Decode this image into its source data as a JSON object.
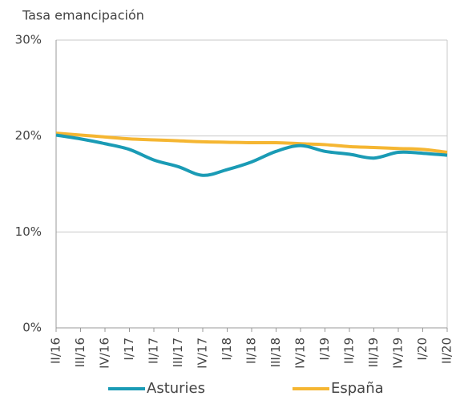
{
  "chart_data": {
    "type": "line",
    "title": "Tasa emancipación",
    "categories": [
      "II/16",
      "III/16",
      "IV/16",
      "I/17",
      "II/17",
      "III/17",
      "IV/17",
      "I/18",
      "II/18",
      "III/18",
      "IV/18",
      "I/19",
      "II/19",
      "III/19",
      "IV/19",
      "I/20",
      "II/20"
    ],
    "series": [
      {
        "name": "Asturies",
        "color": "#1a9bb5",
        "values": [
          20.1,
          19.7,
          19.2,
          18.6,
          17.5,
          16.8,
          15.9,
          16.5,
          17.3,
          18.4,
          19.0,
          18.4,
          18.1,
          17.7,
          18.3,
          18.2,
          18.0
        ]
      },
      {
        "name": "España",
        "color": "#f5b632",
        "values": [
          20.3,
          20.1,
          19.9,
          19.7,
          19.6,
          19.5,
          19.4,
          19.35,
          19.3,
          19.3,
          19.2,
          19.1,
          18.9,
          18.8,
          18.7,
          18.6,
          18.3
        ]
      }
    ],
    "ylim": [
      0,
      30
    ],
    "yticks": [
      {
        "value": 0,
        "label": "0%"
      },
      {
        "value": 10,
        "label": "10%"
      },
      {
        "value": 20,
        "label": "20%"
      },
      {
        "value": 30,
        "label": "30%"
      }
    ],
    "grid": true,
    "legend": "bottom"
  }
}
